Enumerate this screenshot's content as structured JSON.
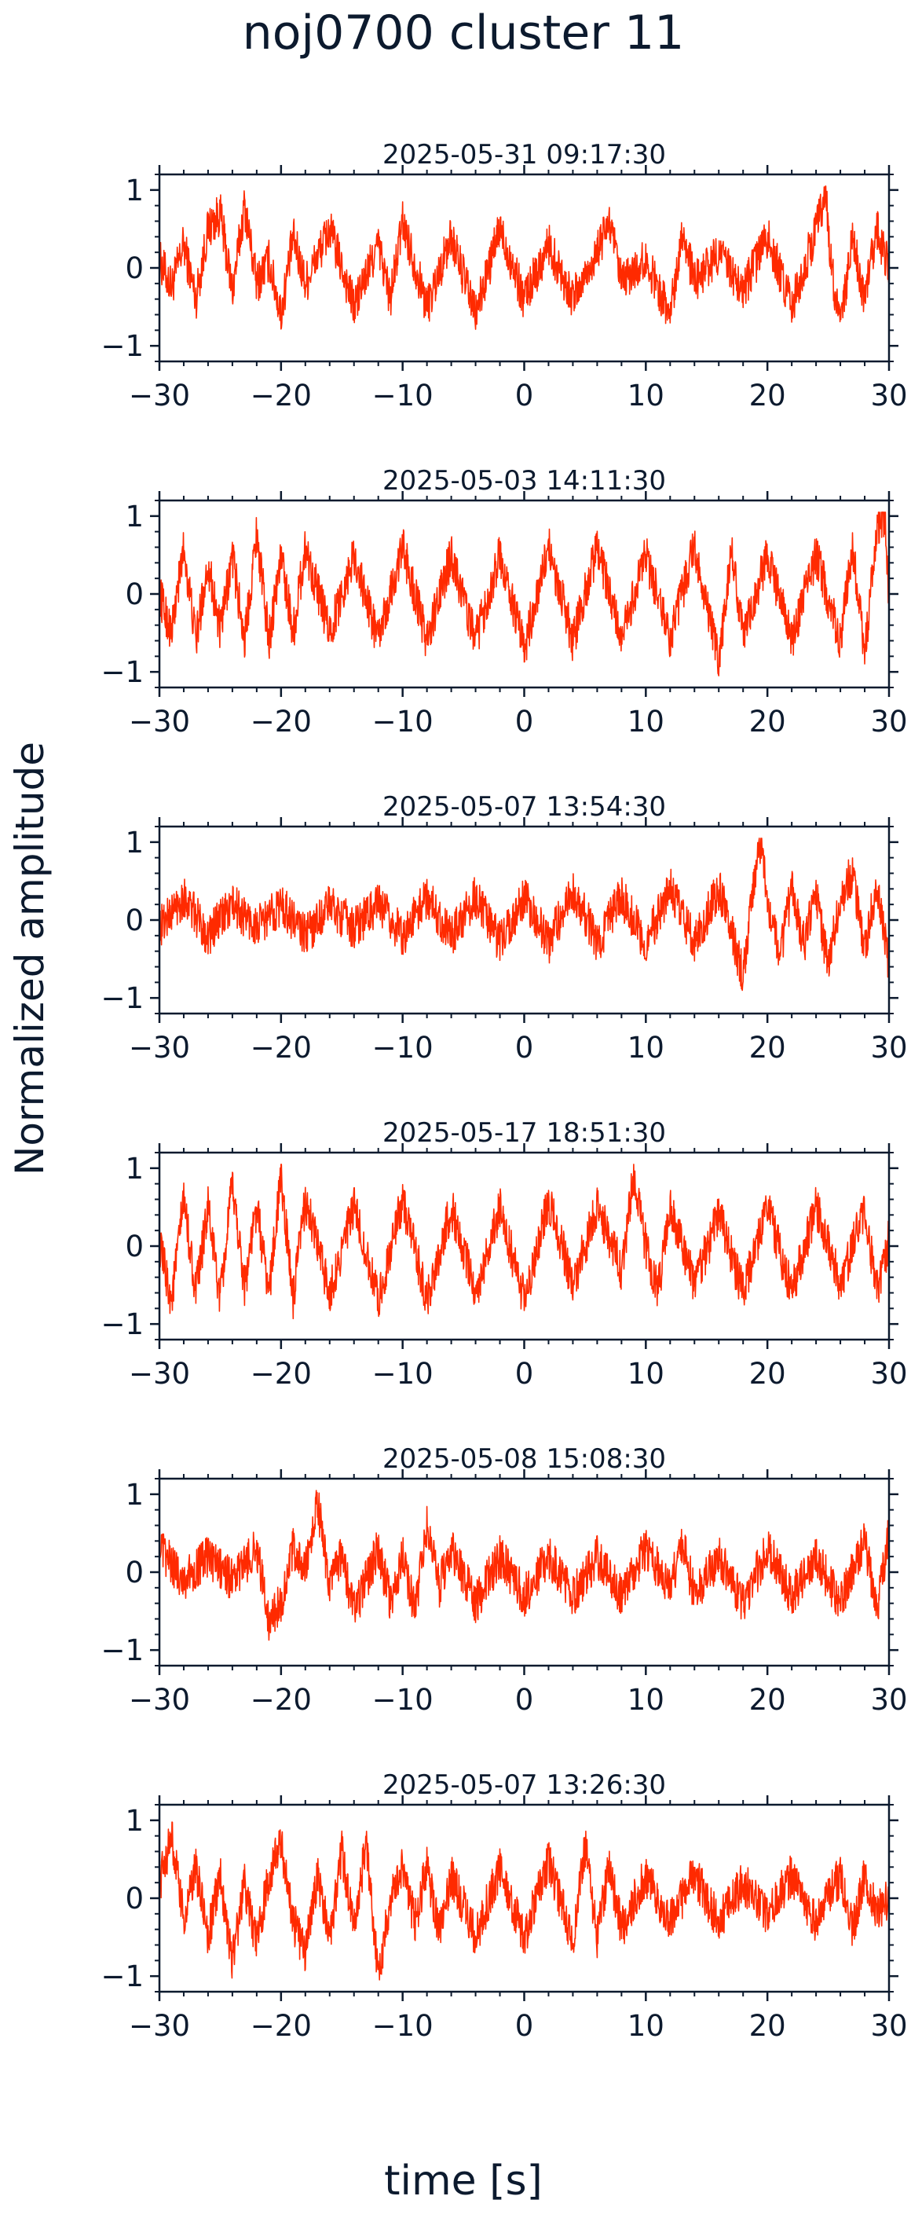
{
  "title": "noj0700 cluster 11",
  "ylabel": "Normalized amplitude",
  "xlabel": "time [s]",
  "chart_data": {
    "type": "line",
    "xlim": [
      -30,
      30
    ],
    "ylim": [
      -1.2,
      1.2
    ],
    "x_ticks": [
      -30,
      -20,
      -10,
      0,
      10,
      20,
      30
    ],
    "y_ticks": [
      -1,
      0,
      1
    ],
    "x_tick_labels": [
      "−30",
      "−20",
      "−10",
      "0",
      "10",
      "20",
      "30"
    ],
    "y_tick_labels": [
      "−1",
      "0",
      "1"
    ],
    "line_color": "#ff2a00",
    "axis_color": "#0c1a2e",
    "panels": [
      {
        "title": "2025-05-31 09:17:30",
        "points": [
          [
            -30,
            0.1
          ],
          [
            -29,
            -0.25
          ],
          [
            -28,
            0.3
          ],
          [
            -27,
            -0.4
          ],
          [
            -26,
            0.5
          ],
          [
            -25,
            0.7
          ],
          [
            -24,
            -0.3
          ],
          [
            -23,
            0.8
          ],
          [
            -22,
            -0.2
          ],
          [
            -21,
            0.1
          ],
          [
            -20,
            -0.6
          ],
          [
            -19,
            0.4
          ],
          [
            -18,
            -0.2
          ],
          [
            -16,
            0.5
          ],
          [
            -14,
            -0.5
          ],
          [
            -12,
            0.3
          ],
          [
            -11,
            -0.4
          ],
          [
            -10,
            0.6
          ],
          [
            -8,
            -0.5
          ],
          [
            -6,
            0.4
          ],
          [
            -4,
            -0.6
          ],
          [
            -2,
            0.5
          ],
          [
            0,
            -0.4
          ],
          [
            2,
            0.3
          ],
          [
            4,
            -0.4
          ],
          [
            6,
            0.2
          ],
          [
            7,
            0.6
          ],
          [
            8,
            -0.2
          ],
          [
            10,
            0.1
          ],
          [
            12,
            -0.6
          ],
          [
            13,
            0.5
          ],
          [
            14,
            -0.2
          ],
          [
            16,
            0.2
          ],
          [
            18,
            -0.3
          ],
          [
            20,
            0.4
          ],
          [
            22,
            -0.5
          ],
          [
            24,
            0.5
          ],
          [
            24.8,
            1.0
          ],
          [
            25.2,
            0.1
          ],
          [
            26,
            -0.8
          ],
          [
            27,
            0.4
          ],
          [
            28,
            -0.4
          ],
          [
            29,
            0.5
          ],
          [
            30,
            0.0
          ]
        ]
      },
      {
        "title": "2025-05-03 14:11:30",
        "points": [
          [
            -30,
            0.0
          ],
          [
            -29,
            -0.5
          ],
          [
            -28,
            0.6
          ],
          [
            -27,
            -0.6
          ],
          [
            -26,
            0.4
          ],
          [
            -25,
            -0.5
          ],
          [
            -24,
            0.5
          ],
          [
            -23,
            -0.6
          ],
          [
            -22,
            0.8
          ],
          [
            -21,
            -0.6
          ],
          [
            -20,
            0.5
          ],
          [
            -19,
            -0.5
          ],
          [
            -18,
            0.6
          ],
          [
            -16,
            -0.5
          ],
          [
            -14,
            0.5
          ],
          [
            -12,
            -0.6
          ],
          [
            -10,
            0.6
          ],
          [
            -8,
            -0.6
          ],
          [
            -6,
            0.5
          ],
          [
            -4,
            -0.6
          ],
          [
            -2,
            0.5
          ],
          [
            0,
            -0.7
          ],
          [
            2,
            0.6
          ],
          [
            4,
            -0.6
          ],
          [
            6,
            0.6
          ],
          [
            8,
            -0.6
          ],
          [
            10,
            0.5
          ],
          [
            12,
            -0.6
          ],
          [
            14,
            0.6
          ],
          [
            16,
            -0.9
          ],
          [
            17,
            0.6
          ],
          [
            18,
            -0.5
          ],
          [
            20,
            0.5
          ],
          [
            22,
            -0.6
          ],
          [
            24,
            0.5
          ],
          [
            26,
            -0.6
          ],
          [
            27,
            0.6
          ],
          [
            28,
            -0.8
          ],
          [
            29,
            0.9
          ],
          [
            29.7,
            1.0
          ],
          [
            30,
            -0.2
          ]
        ]
      },
      {
        "title": "2025-05-07 13:54:30",
        "points": [
          [
            -30,
            -0.1
          ],
          [
            -28,
            0.3
          ],
          [
            -26,
            -0.2
          ],
          [
            -24,
            0.2
          ],
          [
            -22,
            -0.1
          ],
          [
            -20,
            0.2
          ],
          [
            -18,
            -0.2
          ],
          [
            -16,
            0.2
          ],
          [
            -14,
            -0.1
          ],
          [
            -12,
            0.2
          ],
          [
            -10,
            -0.2
          ],
          [
            -8,
            0.3
          ],
          [
            -6,
            -0.2
          ],
          [
            -4,
            0.3
          ],
          [
            -2,
            -0.3
          ],
          [
            0,
            0.3
          ],
          [
            2,
            -0.3
          ],
          [
            4,
            0.4
          ],
          [
            6,
            -0.3
          ],
          [
            8,
            0.3
          ],
          [
            10,
            -0.3
          ],
          [
            12,
            0.4
          ],
          [
            14,
            -0.3
          ],
          [
            16,
            0.4
          ],
          [
            18,
            -0.7
          ],
          [
            19,
            0.6
          ],
          [
            19.5,
            1.0
          ],
          [
            20,
            0.3
          ],
          [
            21,
            -0.5
          ],
          [
            22,
            0.4
          ],
          [
            23,
            -0.3
          ],
          [
            24,
            0.3
          ],
          [
            25,
            -0.6
          ],
          [
            26,
            0.3
          ],
          [
            27,
            0.6
          ],
          [
            28,
            -0.4
          ],
          [
            29,
            0.5
          ],
          [
            30,
            -0.6
          ]
        ]
      },
      {
        "title": "2025-05-17 18:51:30",
        "points": [
          [
            -30,
            0.0
          ],
          [
            -29,
            -0.7
          ],
          [
            -28,
            0.6
          ],
          [
            -27,
            -0.6
          ],
          [
            -26,
            0.5
          ],
          [
            -25,
            -0.7
          ],
          [
            -24,
            0.8
          ],
          [
            -23,
            -0.5
          ],
          [
            -22,
            0.5
          ],
          [
            -21,
            -0.6
          ],
          [
            -20,
            0.9
          ],
          [
            -19,
            -0.7
          ],
          [
            -18,
            0.6
          ],
          [
            -16,
            -0.6
          ],
          [
            -14,
            0.5
          ],
          [
            -12,
            -0.7
          ],
          [
            -10,
            0.6
          ],
          [
            -8,
            -0.7
          ],
          [
            -6,
            0.5
          ],
          [
            -4,
            -0.6
          ],
          [
            -2,
            0.5
          ],
          [
            0,
            -0.7
          ],
          [
            2,
            0.6
          ],
          [
            4,
            -0.5
          ],
          [
            6,
            0.5
          ],
          [
            8,
            -0.3
          ],
          [
            9,
            0.9
          ],
          [
            10,
            0.0
          ],
          [
            11,
            -0.6
          ],
          [
            12,
            0.5
          ],
          [
            14,
            -0.5
          ],
          [
            16,
            0.4
          ],
          [
            18,
            -0.6
          ],
          [
            20,
            0.5
          ],
          [
            22,
            -0.6
          ],
          [
            24,
            0.5
          ],
          [
            26,
            -0.5
          ],
          [
            28,
            0.5
          ],
          [
            29,
            -0.6
          ],
          [
            30,
            0.1
          ]
        ]
      },
      {
        "title": "2025-05-08 15:08:30",
        "points": [
          [
            -30,
            0.3
          ],
          [
            -28,
            -0.1
          ],
          [
            -26,
            0.2
          ],
          [
            -24,
            -0.1
          ],
          [
            -22,
            0.3
          ],
          [
            -21,
            -0.6
          ],
          [
            -20,
            -0.4
          ],
          [
            -19,
            0.3
          ],
          [
            -18,
            0.0
          ],
          [
            -17,
            0.9
          ],
          [
            -16,
            -0.2
          ],
          [
            -15,
            0.2
          ],
          [
            -14,
            -0.5
          ],
          [
            -12,
            0.3
          ],
          [
            -11,
            -0.4
          ],
          [
            -10,
            0.2
          ],
          [
            -9,
            -0.5
          ],
          [
            -8,
            0.6
          ],
          [
            -7,
            -0.2
          ],
          [
            -6,
            0.3
          ],
          [
            -4,
            -0.4
          ],
          [
            -2,
            0.2
          ],
          [
            0,
            -0.3
          ],
          [
            2,
            0.2
          ],
          [
            4,
            -0.3
          ],
          [
            6,
            0.2
          ],
          [
            8,
            -0.3
          ],
          [
            10,
            0.3
          ],
          [
            12,
            -0.2
          ],
          [
            13,
            0.4
          ],
          [
            14,
            -0.3
          ],
          [
            16,
            0.2
          ],
          [
            18,
            -0.4
          ],
          [
            20,
            0.3
          ],
          [
            22,
            -0.3
          ],
          [
            24,
            0.2
          ],
          [
            26,
            -0.4
          ],
          [
            28,
            0.4
          ],
          [
            29,
            -0.5
          ],
          [
            30,
            0.5
          ]
        ]
      },
      {
        "title": "2025-05-07 13:26:30",
        "points": [
          [
            -30,
            0.2
          ],
          [
            -29,
            0.8
          ],
          [
            -28,
            -0.3
          ],
          [
            -27,
            0.4
          ],
          [
            -26,
            -0.5
          ],
          [
            -25,
            0.3
          ],
          [
            -24,
            -0.8
          ],
          [
            -23,
            0.2
          ],
          [
            -22,
            -0.6
          ],
          [
            -21,
            0.3
          ],
          [
            -20,
            0.7
          ],
          [
            -19,
            -0.3
          ],
          [
            -18,
            -0.7
          ],
          [
            -17,
            0.3
          ],
          [
            -16,
            -0.5
          ],
          [
            -15,
            0.6
          ],
          [
            -14,
            -0.4
          ],
          [
            -13,
            0.7
          ],
          [
            -12,
            -1.0
          ],
          [
            -11,
            0.0
          ],
          [
            -10,
            0.4
          ],
          [
            -9,
            -0.3
          ],
          [
            -8,
            0.4
          ],
          [
            -7,
            -0.4
          ],
          [
            -6,
            0.3
          ],
          [
            -4,
            -0.5
          ],
          [
            -2,
            0.4
          ],
          [
            0,
            -0.5
          ],
          [
            2,
            0.5
          ],
          [
            4,
            -0.6
          ],
          [
            5,
            0.7
          ],
          [
            6,
            -0.5
          ],
          [
            7,
            0.4
          ],
          [
            8,
            -0.4
          ],
          [
            10,
            0.3
          ],
          [
            12,
            -0.3
          ],
          [
            14,
            0.3
          ],
          [
            16,
            -0.3
          ],
          [
            18,
            0.2
          ],
          [
            20,
            -0.2
          ],
          [
            22,
            0.3
          ],
          [
            24,
            -0.3
          ],
          [
            26,
            0.3
          ],
          [
            27,
            -0.4
          ],
          [
            28,
            0.3
          ],
          [
            29,
            -0.2
          ],
          [
            30,
            0.0
          ]
        ]
      }
    ]
  }
}
